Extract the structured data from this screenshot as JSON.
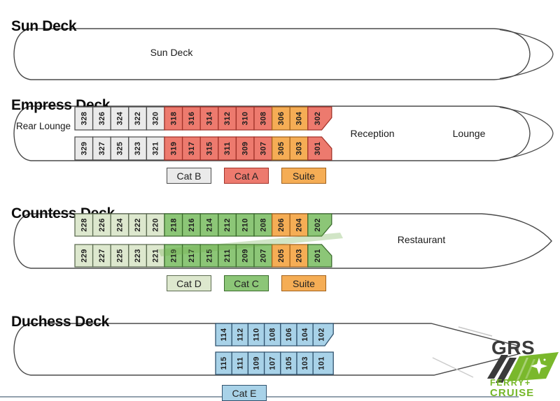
{
  "decks": [
    {
      "id": "sun",
      "title": "Sun Deck",
      "interior_label": "Sun Deck"
    },
    {
      "id": "empress",
      "title": "Empress Deck",
      "labels": {
        "stern": "Rear Lounge",
        "mid": "Reception",
        "bow": "Lounge"
      },
      "rows": [
        [
          {
            "n": "328",
            "cat": "catB"
          },
          {
            "n": "326",
            "cat": "catB"
          },
          {
            "n": "324",
            "cat": "catB"
          },
          {
            "n": "322",
            "cat": "catB"
          },
          {
            "n": "320",
            "cat": "catB"
          },
          {
            "n": "318",
            "cat": "catA"
          },
          {
            "n": "316",
            "cat": "catA"
          },
          {
            "n": "314",
            "cat": "catA"
          },
          {
            "n": "312",
            "cat": "catA"
          },
          {
            "n": "310",
            "cat": "catA"
          },
          {
            "n": "308",
            "cat": "catA"
          },
          {
            "n": "306",
            "cat": "suite"
          },
          {
            "n": "304",
            "cat": "suite"
          },
          {
            "n": "302",
            "cat": "catA"
          }
        ],
        [
          {
            "n": "329",
            "cat": "catB"
          },
          {
            "n": "327",
            "cat": "catB"
          },
          {
            "n": "325",
            "cat": "catB"
          },
          {
            "n": "323",
            "cat": "catB"
          },
          {
            "n": "321",
            "cat": "catB"
          },
          {
            "n": "319",
            "cat": "catA"
          },
          {
            "n": "317",
            "cat": "catA"
          },
          {
            "n": "315",
            "cat": "catA"
          },
          {
            "n": "311",
            "cat": "catA"
          },
          {
            "n": "309",
            "cat": "catA"
          },
          {
            "n": "307",
            "cat": "catA"
          },
          {
            "n": "305",
            "cat": "suite"
          },
          {
            "n": "303",
            "cat": "suite"
          },
          {
            "n": "301",
            "cat": "catA"
          }
        ]
      ],
      "legend": [
        {
          "label": "Cat B",
          "cat": "catB"
        },
        {
          "label": "Cat A",
          "cat": "catA"
        },
        {
          "label": "Suite",
          "cat": "suite"
        }
      ]
    },
    {
      "id": "countess",
      "title": "Countess Deck",
      "labels": {
        "bow": "Restaurant"
      },
      "rows": [
        [
          {
            "n": "228",
            "cat": "catD"
          },
          {
            "n": "226",
            "cat": "catD"
          },
          {
            "n": "224",
            "cat": "catD"
          },
          {
            "n": "222",
            "cat": "catD"
          },
          {
            "n": "220",
            "cat": "catD"
          },
          {
            "n": "218",
            "cat": "catC"
          },
          {
            "n": "216",
            "cat": "catC"
          },
          {
            "n": "214",
            "cat": "catC"
          },
          {
            "n": "212",
            "cat": "catC"
          },
          {
            "n": "210",
            "cat": "catC"
          },
          {
            "n": "208",
            "cat": "catC"
          },
          {
            "n": "206",
            "cat": "suite"
          },
          {
            "n": "204",
            "cat": "suite"
          },
          {
            "n": "202",
            "cat": "catC"
          }
        ],
        [
          {
            "n": "229",
            "cat": "catD"
          },
          {
            "n": "227",
            "cat": "catD"
          },
          {
            "n": "225",
            "cat": "catD"
          },
          {
            "n": "223",
            "cat": "catD"
          },
          {
            "n": "221",
            "cat": "catD"
          },
          {
            "n": "219",
            "cat": "catC"
          },
          {
            "n": "217",
            "cat": "catC"
          },
          {
            "n": "215",
            "cat": "catC"
          },
          {
            "n": "211",
            "cat": "catC"
          },
          {
            "n": "209",
            "cat": "catC"
          },
          {
            "n": "207",
            "cat": "catC"
          },
          {
            "n": "205",
            "cat": "suite"
          },
          {
            "n": "203",
            "cat": "suite"
          },
          {
            "n": "201",
            "cat": "catC"
          }
        ]
      ],
      "legend": [
        {
          "label": "Cat D",
          "cat": "catD"
        },
        {
          "label": "Cat C",
          "cat": "catC"
        },
        {
          "label": "Suite",
          "cat": "suite"
        }
      ]
    },
    {
      "id": "duchess",
      "title": "Duchess Deck",
      "rows": [
        [
          {
            "n": "114",
            "cat": "catE"
          },
          {
            "n": "112",
            "cat": "catE"
          },
          {
            "n": "110",
            "cat": "catE"
          },
          {
            "n": "108",
            "cat": "catE"
          },
          {
            "n": "106",
            "cat": "catE"
          },
          {
            "n": "104",
            "cat": "catE"
          },
          {
            "n": "102",
            "cat": "catE"
          }
        ],
        [
          {
            "n": "115",
            "cat": "catE"
          },
          {
            "n": "111",
            "cat": "catE"
          },
          {
            "n": "109",
            "cat": "catE"
          },
          {
            "n": "107",
            "cat": "catE"
          },
          {
            "n": "105",
            "cat": "catE"
          },
          {
            "n": "103",
            "cat": "catE"
          },
          {
            "n": "101",
            "cat": "catE"
          }
        ]
      ],
      "legend": [
        {
          "label": "Cat E",
          "cat": "catE"
        }
      ]
    }
  ],
  "categories": {
    "catA": {
      "name": "Cat A",
      "fill": "#ed7a6e",
      "border": "#a2332a"
    },
    "catB": {
      "name": "Cat B",
      "fill": "#eaeaea",
      "border": "#4d4d4d"
    },
    "catC": {
      "name": "Cat C",
      "fill": "#8cc677",
      "border": "#3a6b2c"
    },
    "catD": {
      "name": "Cat D",
      "fill": "#dde8ce",
      "border": "#5c6b51"
    },
    "catE": {
      "name": "Cat E",
      "fill": "#a8d2e8",
      "border": "#31536e"
    },
    "suite": {
      "name": "Suite",
      "fill": "#f5ad55",
      "border": "#a2621c"
    }
  },
  "logo": {
    "acronym": "GRS",
    "line1": "FERRY+",
    "line2": "CRUISE",
    "green": "#76b82a",
    "dark": "#3b3b3b"
  }
}
